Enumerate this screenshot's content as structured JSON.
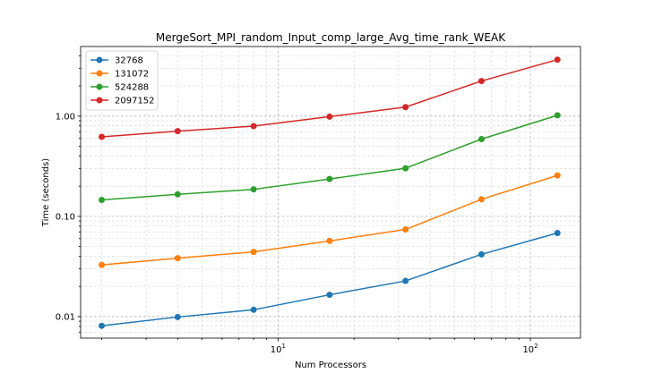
{
  "chart_data": {
    "type": "line",
    "title": "MergeSort_MPI_random_Input_comp_large_Avg_time_rank_WEAK",
    "xlabel": "Num Processors",
    "ylabel": "Time (seconds)",
    "xscale": "log",
    "yscale": "log",
    "xlim": [
      1.65,
      158
    ],
    "ylim": [
      0.0061,
      4.95
    ],
    "x": [
      2,
      4,
      8,
      16,
      32,
      64,
      128
    ],
    "x_ticks": [
      {
        "value": 10,
        "base": "10",
        "exp": "1"
      },
      {
        "value": 100,
        "base": "10",
        "exp": "2"
      }
    ],
    "y_ticks": [
      {
        "value": 0.01,
        "label": "0.01"
      },
      {
        "value": 0.1,
        "label": "0.10"
      },
      {
        "value": 1,
        "label": "1.00"
      }
    ],
    "grid": "both, major and minor, dashed",
    "legend_position": "upper-left",
    "series": [
      {
        "name": "32768",
        "color": "#1f77b4",
        "values": [
          0.0081,
          0.0099,
          0.0117,
          0.0165,
          0.0227,
          0.0418,
          0.0682
        ]
      },
      {
        "name": "131072",
        "color": "#ff7f0e",
        "values": [
          0.0328,
          0.0383,
          0.0442,
          0.0569,
          0.074,
          0.148,
          0.256
        ]
      },
      {
        "name": "524288",
        "color": "#2ca02c",
        "values": [
          0.146,
          0.166,
          0.186,
          0.236,
          0.302,
          0.59,
          1.02
        ]
      },
      {
        "name": "2097152",
        "color": "#d62728",
        "values": [
          0.622,
          0.708,
          0.795,
          0.988,
          1.23,
          2.24,
          3.66
        ]
      }
    ]
  }
}
